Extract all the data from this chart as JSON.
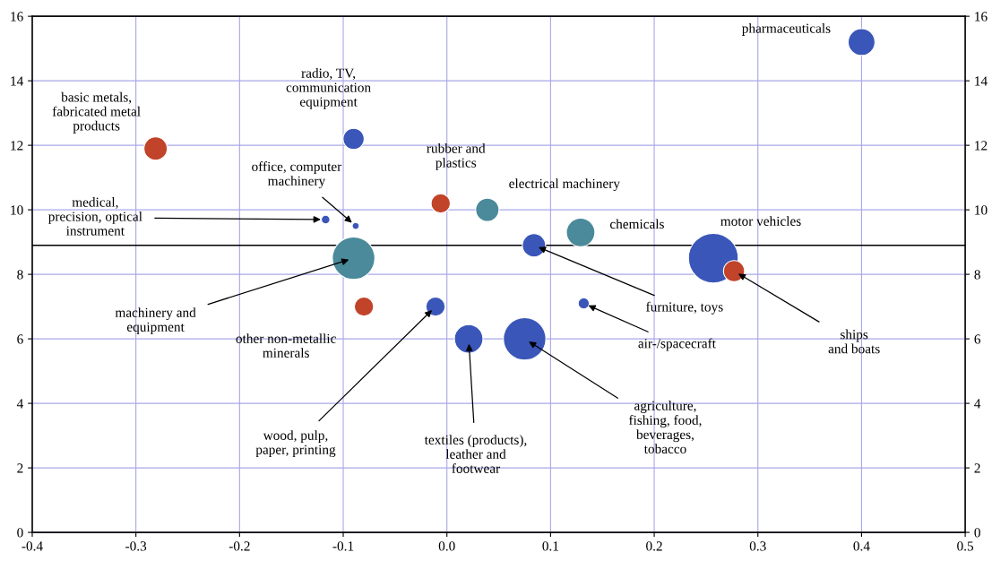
{
  "chart_data": {
    "type": "bubble",
    "relative": false,
    "xlim": [
      -0.4,
      0.5
    ],
    "xticks": [
      -0.4,
      -0.3,
      -0.2,
      -0.1,
      {
        "value": 0,
        "label": "0.0"
      },
      0.1,
      0.2,
      0.3,
      0.4,
      0.5
    ],
    "ylim": [
      0,
      16
    ],
    "yticks": [
      0,
      2,
      4,
      6,
      8,
      10,
      12,
      14,
      16
    ],
    "y2lim": [
      0,
      16
    ],
    "y2ticks": [
      0,
      2,
      4,
      6,
      8,
      10,
      12,
      14,
      16
    ],
    "grid": true,
    "series": [
      {
        "color": "#3a56b8",
        "x": [
          0.4,
          -0.09,
          -0.088,
          -0.117,
          0.084,
          0.257,
          -0.011,
          0.132,
          0.021,
          0.075
        ],
        "values": [
          15.2,
          12.2,
          9.5,
          9.7,
          8.9,
          8.5,
          7.0,
          7.1,
          6.0,
          6.0
        ],
        "sizes": [
          0.29,
          0.18,
          0.02,
          0.03,
          0.22,
          1,
          0.15,
          0.05,
          0.33,
          0.73
        ]
      },
      {
        "color": "#c0432a",
        "x": [
          -0.281,
          -0.006,
          0.277,
          -0.08
        ],
        "values": [
          11.9,
          10.2,
          8.1,
          7.0
        ],
        "sizes": [
          0.22,
          0.15,
          0.18,
          0.15
        ]
      },
      {
        "color": "#4a8a9a",
        "x": [
          0.039,
          0.129,
          -0.09
        ],
        "values": [
          10.0,
          9.3,
          8.5
        ],
        "sizes": [
          0.22,
          0.33,
          0.73
        ]
      }
    ],
    "ref_lines": [
      {
        "axis": "y",
        "value": 8.9,
        "color": "#000000"
      }
    ],
    "annotations": [
      {
        "text": "pharmaceuticals",
        "x": 0.4,
        "y": 15.2
      },
      {
        "text": "basic metals,\nfabricated metal\nproducts",
        "x": -0.281,
        "y": 11.9
      },
      {
        "text": "radio, TV,\ncommunication\nequipment",
        "x": -0.09,
        "y": 12.2
      },
      {
        "text": "rubber and\nplastics",
        "x": -0.006,
        "y": 10.2
      },
      {
        "text": "electrical machinery",
        "x": 0.039,
        "y": 10.0
      },
      {
        "text": "office, computer\nmachinery",
        "x": -0.088,
        "y": 9.5
      },
      {
        "text": "medical,\nprecision, optical\ninstrument",
        "x": -0.117,
        "y": 9.7
      },
      {
        "text": "chemicals",
        "x": 0.129,
        "y": 9.3
      },
      {
        "text": "furniture, toys",
        "x": 0.084,
        "y": 8.9
      },
      {
        "text": "motor vehicles",
        "x": 0.257,
        "y": 8.5
      },
      {
        "text": "ships\nand boats",
        "x": 0.277,
        "y": 8.1
      },
      {
        "text": "machinery and\nequipment",
        "x": -0.09,
        "y": 8.5
      },
      {
        "text": "other non-metallic\nminerals",
        "x": -0.08,
        "y": 7.0
      },
      {
        "text": "wood, pulp,\npaper, printing",
        "x": -0.011,
        "y": 7.0
      },
      {
        "text": "air-/spacecraft",
        "x": 0.132,
        "y": 7.1
      },
      {
        "text": "textiles (products),\nleather and\nfootwear",
        "x": 0.021,
        "y": 6.0
      },
      {
        "text": "agriculture,\nfishing, food,\nbeverages,\ntobacco",
        "x": 0.075,
        "y": 6.0
      }
    ]
  }
}
